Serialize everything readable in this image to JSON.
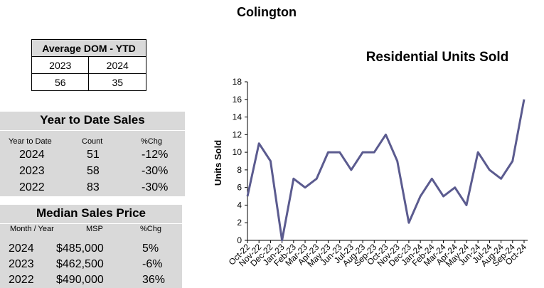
{
  "page": {
    "title": "Colington"
  },
  "avg_dom": {
    "header": "Average DOM - YTD",
    "years": [
      "2023",
      "2024"
    ],
    "values": [
      "56",
      "35"
    ]
  },
  "ytd_sales": {
    "title": "Year to Date Sales",
    "col_headers": [
      "Year to Date",
      "Count",
      "%Chg"
    ],
    "rows": [
      {
        "year": "2024",
        "count": "51",
        "chg": "-12%"
      },
      {
        "year": "2023",
        "count": "58",
        "chg": "-30%"
      },
      {
        "year": "2022",
        "count": "83",
        "chg": "-30%"
      }
    ]
  },
  "median_price": {
    "title": "Median Sales Price",
    "col_headers": [
      "Month / Year",
      "MSP",
      "%Chg"
    ],
    "rows": [
      {
        "year": "2024",
        "msp": "$485,000",
        "chg": "5%"
      },
      {
        "year": "2023",
        "msp": "$462,500",
        "chg": "-6%"
      },
      {
        "year": "2022",
        "msp": "$490,000",
        "chg": "36%"
      }
    ]
  },
  "chart_data": {
    "type": "line",
    "title": "Residential Units Sold",
    "xlabel": "",
    "ylabel": "Units Sold",
    "ylim": [
      0,
      18
    ],
    "yticks": [
      0,
      2,
      4,
      6,
      8,
      10,
      12,
      14,
      16,
      18
    ],
    "grid": false,
    "line_color": "#5b5b8f",
    "categories": [
      "Oct-22",
      "Nov-22",
      "Dec-22",
      "Jan-23",
      "Feb-23",
      "Mar-23",
      "Apr-23",
      "May-23",
      "Jun-23",
      "Jul-23",
      "Aug-23",
      "Sep-23",
      "Oct-23",
      "Nov-23",
      "Dec-23",
      "Jan-24",
      "Feb-24",
      "Mar-24",
      "Apr-24",
      "May-24",
      "Jun-24",
      "Jul-24",
      "Aug-24",
      "Sep-24",
      "Oct-24"
    ],
    "values": [
      5,
      11,
      9,
      0,
      7,
      6,
      7,
      10,
      10,
      8,
      10,
      10,
      12,
      9,
      2,
      5,
      7,
      5,
      6,
      4,
      10,
      8,
      7,
      9,
      16
    ]
  }
}
